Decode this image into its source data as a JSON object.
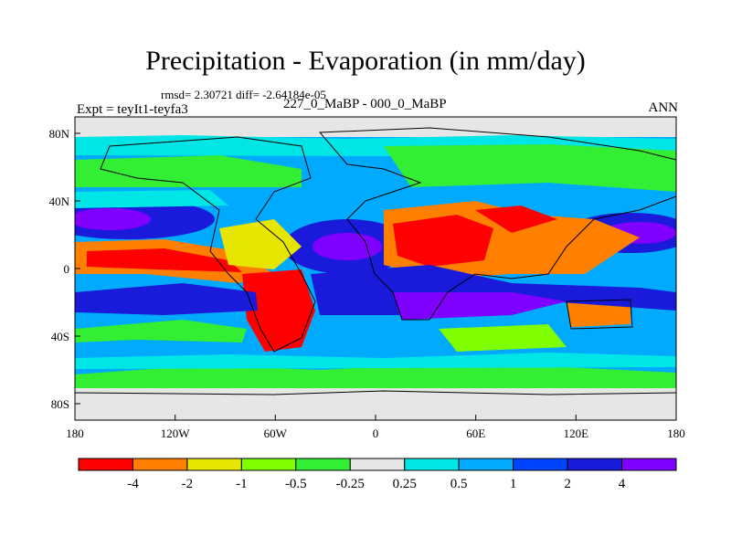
{
  "title": "Precipitation - Evaporation (in mm/day)",
  "stats": "rmsd= 2.30721 diff= -2.64184e-05",
  "expt": "Expt = teyIt1-teyfa3",
  "period": "227_0_MaBP - 000_0_MaBP",
  "season": "ANN",
  "map": {
    "lon_ticks": [
      "180",
      "120W",
      "60W",
      "0",
      "60E",
      "120E",
      "180"
    ],
    "lat_ticks": [
      "80N",
      "40N",
      "0",
      "40S",
      "80S"
    ]
  },
  "colorbar": {
    "labels": [
      "-4",
      "-2",
      "-1",
      "-0.5",
      "-0.25",
      "0.25",
      "0.5",
      "1",
      "2",
      "4"
    ],
    "colors": [
      "#ff0000",
      "#ff8000",
      "#e6e600",
      "#80ff00",
      "#33ee33",
      "#e6e6e6",
      "#00e6e6",
      "#00aaff",
      "#0044ff",
      "#1a1adb",
      "#8000ff"
    ]
  }
}
